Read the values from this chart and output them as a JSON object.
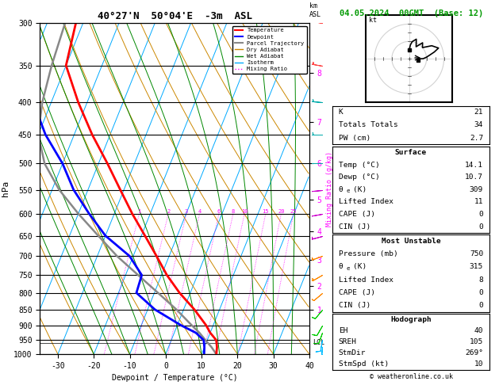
{
  "title_left": "40°27'N  50°04'E  -3m  ASL",
  "title_right": "04.05.2024  00GMT  (Base: 12)",
  "xlabel": "Dewpoint / Temperature (°C)",
  "ylabel_left": "hPa",
  "pressure_levels": [
    300,
    350,
    400,
    450,
    500,
    550,
    600,
    650,
    700,
    750,
    800,
    850,
    900,
    950,
    1000
  ],
  "temp_data": {
    "pressure": [
      1000,
      975,
      950,
      925,
      900,
      850,
      800,
      750,
      700,
      650,
      600,
      550,
      500,
      450,
      400,
      350,
      300
    ],
    "temperature": [
      14.1,
      13.5,
      12.5,
      10.0,
      8.0,
      3.0,
      -3.0,
      -8.5,
      -13.5,
      -19.0,
      -25.0,
      -31.0,
      -37.5,
      -45.0,
      -52.5,
      -60.0,
      -62.0
    ]
  },
  "dewp_data": {
    "pressure": [
      1000,
      975,
      950,
      925,
      900,
      850,
      800,
      750,
      700,
      650,
      600,
      550,
      500,
      450,
      400,
      350,
      300
    ],
    "dewpoint": [
      10.7,
      10.0,
      9.0,
      6.0,
      1.0,
      -8.0,
      -15.0,
      -15.5,
      -21.0,
      -30.0,
      -37.0,
      -44.0,
      -50.0,
      -58.0,
      -65.0,
      -70.0,
      -73.0
    ]
  },
  "parcel_data": {
    "pressure": [
      1000,
      975,
      950,
      925,
      900,
      850,
      800,
      750,
      700,
      650,
      600,
      550,
      500,
      450,
      400,
      350,
      300
    ],
    "temperature": [
      14.1,
      12.0,
      9.5,
      7.0,
      4.0,
      -2.0,
      -9.0,
      -16.5,
      -24.5,
      -32.0,
      -40.0,
      -48.0,
      -55.0,
      -60.0,
      -62.5,
      -64.0,
      -65.0
    ]
  },
  "lcl_pressure": 960,
  "stats": {
    "K": 21,
    "Totals_Totals": 34,
    "PW_cm": 2.7,
    "Surface_Temp": 14.1,
    "Surface_Dewp": 10.7,
    "theta_e": 309,
    "Lifted_Index": 11,
    "CAPE": 0,
    "CIN": 0,
    "MU_Pressure": 750,
    "MU_theta_e": 315,
    "MU_Lifted_Index": 8,
    "MU_CAPE": 0,
    "MU_CIN": 0,
    "EH": 40,
    "SREH": 105,
    "StmDir": 269,
    "StmSpd": 10
  },
  "colors": {
    "temperature": "#ff0000",
    "dewpoint": "#0000ff",
    "parcel": "#888888",
    "dry_adiabat": "#cc8800",
    "wet_adiabat": "#008800",
    "isotherm": "#00aaff",
    "mixing_ratio": "#ff00ff",
    "background": "#ffffff",
    "grid": "#000000",
    "title_right": "#009900"
  },
  "mixing_ratio_labels": [
    1,
    2,
    3,
    4,
    6,
    8,
    10,
    15,
    20,
    25
  ],
  "km_ticks": {
    "1": 850,
    "2": 780,
    "3": 710,
    "4": 640,
    "5": 570,
    "6": 500,
    "7": 430,
    "8": 360
  },
  "wind_barbs": {
    "pressure": [
      1000,
      975,
      950,
      925,
      900,
      850,
      800,
      750,
      700,
      650,
      600,
      550,
      500,
      450,
      400,
      350,
      300
    ],
    "speed_knots": [
      5,
      8,
      10,
      12,
      8,
      12,
      10,
      15,
      18,
      15,
      12,
      10,
      8,
      5,
      5,
      5,
      5
    ],
    "direction_deg": [
      180,
      185,
      190,
      200,
      210,
      220,
      230,
      240,
      250,
      255,
      260,
      265,
      270,
      270,
      275,
      280,
      280
    ],
    "colors": [
      "#00bbff",
      "#00bbff",
      "#00bbff",
      "#00cc00",
      "#00cc00",
      "#00cc00",
      "#ff8800",
      "#ff8800",
      "#ff8800",
      "#cc00cc",
      "#cc00cc",
      "#cc00cc",
      "#00aaaa",
      "#00aaaa",
      "#00aaaa",
      "#ff4444",
      "#ff4444"
    ]
  },
  "skewt": {
    "p_min": 300,
    "p_max": 1000,
    "T_min": -35,
    "T_max": 40,
    "skew_factor": 37
  }
}
